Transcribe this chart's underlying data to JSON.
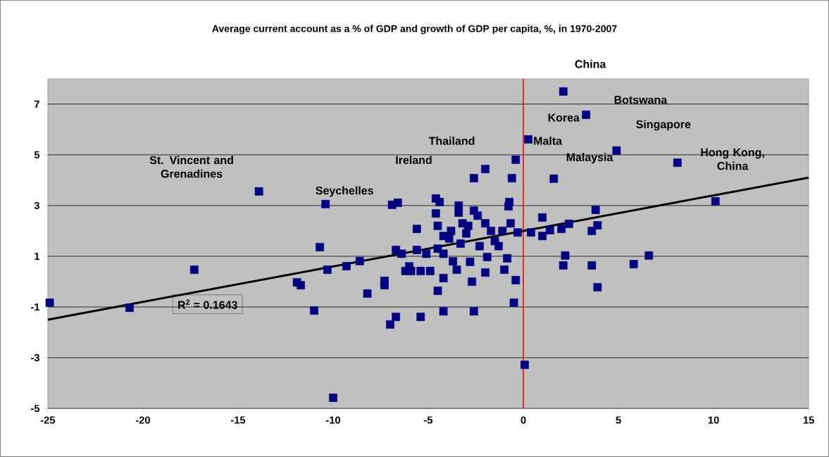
{
  "chart_data": {
    "type": "scatter",
    "title": "Average current account as a % of GDP and growth of GDP per capita, %, in 1970-2007",
    "xlim": [
      -25,
      15
    ],
    "ylim": [
      -5,
      8
    ],
    "xticks": [
      -25,
      -20,
      -15,
      -10,
      -5,
      0,
      5,
      10,
      15
    ],
    "yticks": [
      -5,
      -3,
      -1,
      1,
      3,
      5,
      7
    ],
    "grid": "y",
    "series": [
      {
        "marker": "square",
        "color": "#000080",
        "x": [
          -24.9,
          -20.7,
          -17.3,
          -13.9,
          -11.9,
          -11.7,
          -11.0,
          -10.7,
          -10.4,
          -10.3,
          -10.0,
          -9.3,
          -8.6,
          -8.2,
          -7.3,
          -7.3,
          -7.0,
          -6.9,
          -6.6,
          -6.7,
          -6.7,
          -6.4,
          -6.2,
          -6.0,
          -5.9,
          -5.6,
          -5.6,
          -5.4,
          -5.4,
          -5.1,
          -4.9,
          -4.6,
          -4.4,
          -4.6,
          -4.5,
          -4.5,
          -4.2,
          -4.2,
          -4.5,
          -4.2,
          -4.2,
          -3.9,
          -3.7,
          -3.5,
          -3.4,
          -3.4,
          -3.2,
          -3.3,
          -3.0,
          -2.8,
          -2.7,
          -2.6,
          -2.6,
          -2.0,
          -2.6,
          -2.4,
          -2.3,
          -2.0,
          -2.0,
          -1.9,
          -1.7,
          -1.5,
          -1.3,
          -1.0,
          -0.85,
          -1.1,
          -0.74,
          -0.78,
          -0.67,
          -0.4,
          -0.5,
          -0.4,
          -0.6,
          -0.3,
          0.07,
          0.26,
          2.1,
          3.3,
          4.9,
          8.1,
          10.1,
          1.6,
          1.0,
          1.0,
          0.4,
          1.4,
          2.0,
          2.4,
          3.8,
          3.9,
          3.6,
          2.2,
          2.1,
          3.6,
          3.9,
          5.8,
          6.6,
          -3.8,
          -2.9
        ],
        "values": [
          -0.83,
          -1.03,
          0.47,
          3.56,
          -0.03,
          -0.14,
          -1.14,
          1.36,
          3.06,
          0.47,
          -4.58,
          0.61,
          0.81,
          -0.47,
          -0.14,
          0.03,
          -1.69,
          3.03,
          3.11,
          -1.39,
          1.25,
          1.1,
          0.42,
          0.6,
          0.42,
          2.08,
          1.25,
          -1.39,
          0.42,
          1.1,
          0.42,
          3.28,
          3.14,
          2.69,
          2.2,
          1.3,
          1.8,
          1.1,
          -0.36,
          0.14,
          -1.17,
          1.7,
          0.8,
          0.47,
          3.0,
          2.72,
          2.3,
          1.5,
          1.9,
          0.78,
          0.0,
          -1.17,
          4.08,
          4.44,
          2.8,
          2.6,
          1.4,
          2.3,
          0.36,
          0.97,
          2.0,
          1.6,
          1.4,
          0.47,
          0.92,
          2.0,
          3.14,
          2.97,
          2.3,
          0.06,
          -0.83,
          4.81,
          4.08,
          1.94,
          -3.28,
          5.61,
          7.5,
          6.58,
          5.17,
          4.69,
          3.17,
          4.06,
          2.53,
          1.8,
          1.94,
          2.03,
          2.08,
          2.28,
          2.83,
          2.22,
          2.0,
          1.03,
          0.64,
          0.64,
          -0.22,
          0.69,
          1.03,
          2.0,
          2.2
        ]
      },
      {
        "type": "line",
        "color": "#000000",
        "x": [
          -25,
          15
        ],
        "values": [
          -1.5,
          4.1
        ]
      }
    ],
    "ref_lines": [
      {
        "axis": "x",
        "value": 0,
        "color": "#ff0000"
      }
    ],
    "annotations": [
      "St. Vincent and Grenadines",
      "Seychelles",
      "Thailand",
      "Ireland",
      "Malta",
      "Korea",
      "China",
      "Botswana",
      "Singapore",
      "Malaysia",
      "Hong Kong, China",
      "R$^{2}$ = 0.1643"
    ]
  }
}
